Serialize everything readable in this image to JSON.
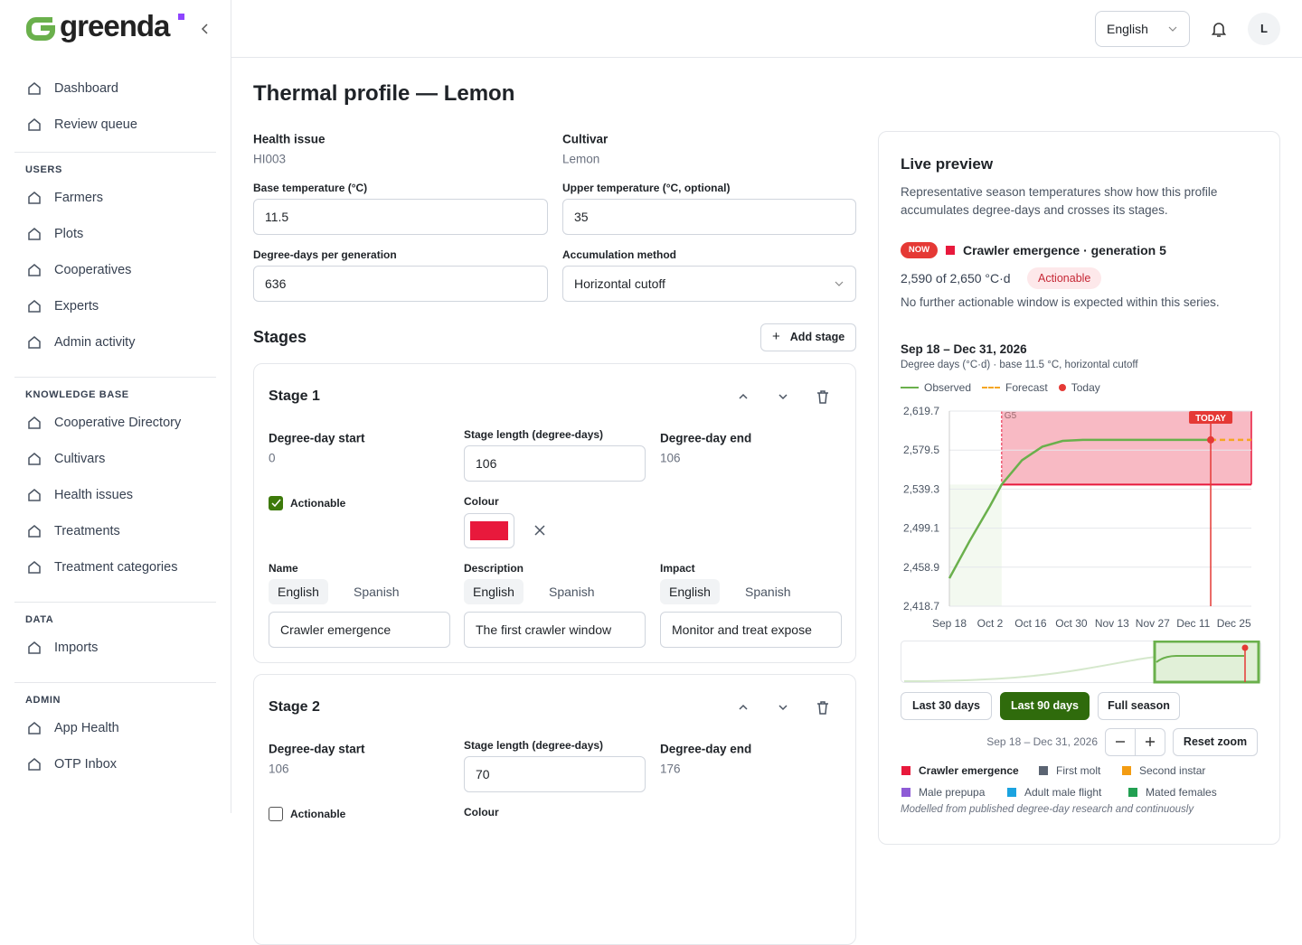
{
  "sidebar": {
    "brand": "greenda",
    "top_items": [
      "Dashboard",
      "Review queue"
    ],
    "sections": [
      {
        "title": "USERS",
        "items": [
          "Farmers",
          "Plots",
          "Cooperatives",
          "Experts",
          "Admin activity"
        ]
      },
      {
        "title": "KNOWLEDGE BASE",
        "items": [
          "Cooperative Directory",
          "Cultivars",
          "Health issues",
          "Treatments",
          "Treatment categories"
        ]
      },
      {
        "title": "DATA",
        "items": [
          "Imports"
        ]
      },
      {
        "title": "ADMIN",
        "items": [
          "App Health",
          "OTP Inbox"
        ]
      }
    ]
  },
  "topbar": {
    "language": "English",
    "avatar": "L"
  },
  "page": {
    "title": "Thermal profile — Lemon",
    "health_issue": {
      "label": "Health issue",
      "value": "HI003"
    },
    "cultivar": {
      "label": "Cultivar",
      "value": "Lemon"
    },
    "base_temperature": {
      "label": "Base temperature (°C)",
      "value": "11.5"
    },
    "upper_temperature": {
      "label": "Upper temperature (°C, optional)",
      "value": "35"
    },
    "degree_days": {
      "label": "Degree-days per generation",
      "value": "636"
    },
    "method": {
      "label": "Accumulation method",
      "value": "Horizontal cutoff"
    },
    "stages_heading": "Stages",
    "add_stage": "Add stage",
    "stage_labels": {
      "start": "Degree-day start",
      "length": "Stage length (degree-days)",
      "end": "Degree-day end",
      "actionable": "Actionable",
      "colour": "Colour",
      "name": "Name",
      "description": "Description",
      "impact": "Impact",
      "tabs": [
        "English",
        "Spanish"
      ]
    },
    "stages": [
      {
        "title": "Stage 1",
        "start": "0",
        "length": "106",
        "end": "106",
        "colour": "#e8193c",
        "name": "Crawler emergence",
        "description": "The first crawler window",
        "impact": "Monitor and treat expose"
      },
      {
        "title": "Stage 2",
        "start": "106",
        "length": "70",
        "end": "176"
      }
    ]
  },
  "preview": {
    "title": "Live preview",
    "description": "Representative season temperatures show how this profile accumulates degree-days and crosses its stages.",
    "now_badge": "NOW",
    "status": "Crawler emergence · generation 5",
    "progress": "2,590 of 2,650 °C·d",
    "badge": "Actionable",
    "note": "No further actionable window is expected within this series.",
    "range_title": "Sep 18 – Dec 31, 2026",
    "chart_subtitle": "Degree days (°C·d) · base 11.5 °C, horizontal cutoff",
    "chart": {
      "type": "line",
      "grid": true,
      "ylim": [
        2418.7,
        2619.7
      ],
      "yticks": [
        {
          "value": 2418.7,
          "label": "2,418.7"
        },
        {
          "value": 2458.9,
          "label": "2,458.9"
        },
        {
          "value": 2499.1,
          "label": "2,499.1"
        },
        {
          "value": 2539.3,
          "label": "2,539.3"
        },
        {
          "value": 2579.5,
          "label": "2,579.5"
        },
        {
          "value": 2619.7,
          "label": "2,619.7"
        }
      ],
      "xlim": [
        "Sep 18",
        "Dec 31"
      ],
      "xticks": [
        "Sep 18",
        "Oct 2",
        "Oct 16",
        "Oct 30",
        "Nov 13",
        "Nov 27",
        "Dec 11",
        "Dec 25"
      ],
      "series": [
        {
          "name": "Observed",
          "color": "#6ab04c",
          "x": [
            "Sep 18",
            "Sep 25",
            "Oct 2",
            "Oct 6",
            "Oct 13",
            "Oct 20",
            "Oct 27",
            "Nov 3",
            "Dec 17"
          ],
          "values": [
            2447.5,
            2486,
            2522,
            2544,
            2569,
            2583,
            2589,
            2590,
            2590
          ]
        },
        {
          "name": "Forecast",
          "color": "#f5a623",
          "dashed": true,
          "x": [
            "Dec 17",
            "Dec 31"
          ],
          "values": [
            2590,
            2590
          ]
        }
      ],
      "today": {
        "name": "Today",
        "marker_label": "TODAY",
        "x": "Dec 17",
        "value": 2590,
        "color": "#e53935"
      },
      "stage_band": {
        "label": "G5",
        "start": "Oct 6",
        "from": 2544,
        "to": 2650,
        "color": "#e8193c"
      }
    },
    "range_buttons": [
      "Last 30 days",
      "Last 90 days",
      "Full season"
    ],
    "range_text": "Sep 18 – Dec 31, 2026",
    "reset": "Reset zoom",
    "stage_legend": [
      {
        "name": "Crawler emergence",
        "color": "#e8193c"
      },
      {
        "name": "First molt",
        "color": "#5b6472"
      },
      {
        "name": "Second instar",
        "color": "#f39c12"
      },
      {
        "name": "Male prepupa",
        "color": "#8e5bd6"
      },
      {
        "name": "Adult male flight",
        "color": "#1ba3e0"
      },
      {
        "name": "Mated females",
        "color": "#22a052"
      }
    ],
    "footnote": "Modelled from published degree-day research and continuously"
  }
}
